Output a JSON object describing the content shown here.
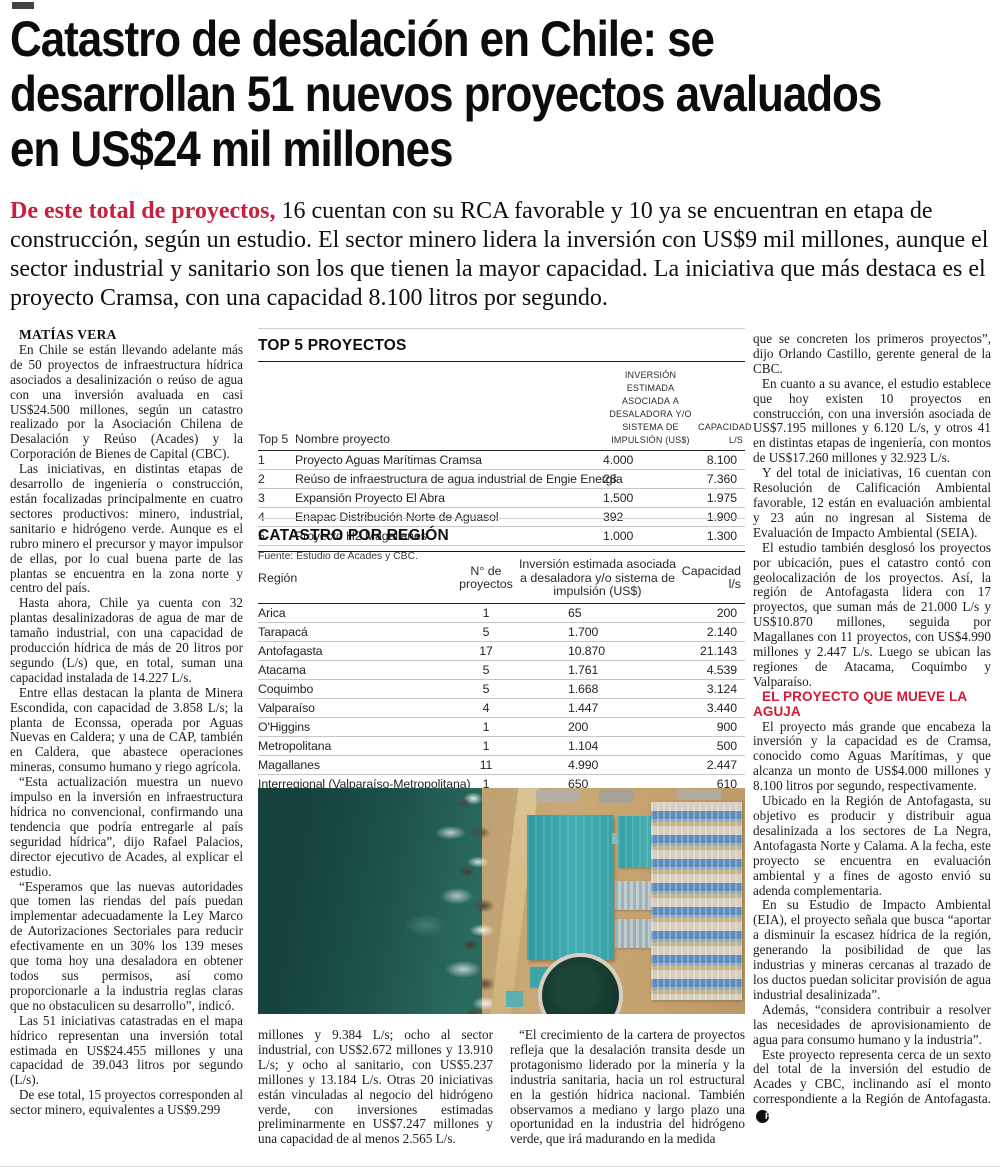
{
  "headline": {
    "lines": [
      "Catastro de desalación en Chile: se",
      "desarrollan 51 nuevos proyectos avaluados",
      "en US$24 mil millones"
    ]
  },
  "lede": {
    "lead_in": "De este total de proyectos,",
    "text": " 16 cuentan con su RCA favorable y 10 ya se encuentran en etapa de construcción, según un estudio. El sector minero lidera la inversión con US$9 mil millones, aunque el sector industrial y sanitario son los que tienen la mayor capacidad. La iniciativa que más destaca es el proyecto Cramsa, con una capacidad 8.100 litros por segundo."
  },
  "byline": "MATÍAS VERA",
  "col1": {
    "paragraphs": [
      "En Chile se están llevando adelante más de 50 proyectos de infraestructura hídrica asociados a desalinización o reúso de agua con una inversión avaluada en casi US$24.500 millones, según un catastro realizado por la Asociación Chilena de Desalación y Reúso (Acades) y la Corporación de Bienes de Capital (CBC).",
      "Las iniciativas, en distintas etapas de desarrollo de ingeniería o construcción, están focalizadas principalmente en cuatro sectores productivos: minero, industrial, sanitario e hidrógeno verde. Aunque es el rubro minero el precursor y mayor impulsor de ellas, por lo cual buena parte de las plantas se encuentra en la zona norte y centro del país.",
      "Hasta ahora, Chile ya cuenta con 32 plantas desalinizadoras de agua de mar de tamaño industrial, con una capacidad de producción hídrica de más de 20 litros por segundo (L/s) que, en total, suman una capacidad instalada de 14.227 L/s.",
      "Entre ellas destacan la planta de Minera Escondida, con capacidad de 3.858 L/s; la planta de Econssa, operada por Aguas Nuevas en Caldera; y una de CAP, también en Caldera, que abastece operaciones mineras, consumo humano y riego agrícola.",
      "“Esta actualización muestra un nuevo impulso en la inversión en infraestructura hídrica no convencional, confirmando una tendencia que podría entregarle al país seguridad hídrica”, dijo Rafael Palacios, director ejecutivo de Acades, al explicar el estudio.",
      "“Esperamos que las nuevas autoridades que tomen las riendas del país puedan implementar adecuadamente la Ley Marco de Autorizaciones Sectoriales para reducir efectivamente en un 30% los 139 meses que toma hoy una desaladora en obtener todos sus permisos, así como proporcionarle a la industria reglas claras que no obstaculicen su desarrollo”, indicó.",
      "Las 51 iniciativas catastradas en el mapa hídrico representan una inversión total estimada en US$24.455 millones y una capacidad de 39.043 litros por segundo (L/s).",
      "De ese total, 15 proyectos corresponden al sector minero, equivalentes a US$9.299"
    ]
  },
  "top5_table": {
    "title": "TOP 5 PROYECTOS",
    "headers": {
      "rank": "Top 5",
      "name": "Nombre proyecto",
      "investment": "Inversión estimada asociada a desaladora y/o sistema de impulsión (US$)",
      "capacity": "Capacidad L/s"
    },
    "rows": [
      {
        "rank": "1",
        "name": "Proyecto Aguas Marítimas Cramsa",
        "investment": "4.000",
        "capacity": "8.100"
      },
      {
        "rank": "2",
        "name": "Reúso de infraestructura de agua industrial de Engie Energía",
        "investment": "28",
        "capacity": "7.360"
      },
      {
        "rank": "3",
        "name": "Expansión Proyecto El Abra",
        "investment": "1.500",
        "capacity": "1.975"
      },
      {
        "rank": "4",
        "name": "Enapac Distribución Norte de Aguasol",
        "investment": "392",
        "capacity": "1.900"
      },
      {
        "rank": "5",
        "name": "Proyecto H2 Magallanes",
        "investment": "1.000",
        "capacity": "1.300"
      }
    ],
    "source": "Fuente: Estudio de Acades y CBC."
  },
  "region_table": {
    "title": "CATASTRO POR REGIÓN",
    "headers": {
      "region": "Región",
      "projects": "N° de proyectos",
      "investment": "Inversión estimada asociada a desaladora y/o sistema de impulsión (US$)",
      "capacity": "Capacidad l/s"
    },
    "rows": [
      {
        "region": "Arica",
        "projects": "1",
        "investment": "65",
        "capacity": "200"
      },
      {
        "region": "Tarapacá",
        "projects": "5",
        "investment": "1.700",
        "capacity": "2.140"
      },
      {
        "region": "Antofagasta",
        "projects": "17",
        "investment": "10.870",
        "capacity": "21.143"
      },
      {
        "region": "Atacama",
        "projects": "5",
        "investment": "1.761",
        "capacity": "4.539"
      },
      {
        "region": "Coquimbo",
        "projects": "5",
        "investment": "1.668",
        "capacity": "3.124"
      },
      {
        "region": "Valparaíso",
        "projects": "4",
        "investment": "1.447",
        "capacity": "3.440"
      },
      {
        "region": "O'Higgins",
        "projects": "1",
        "investment": "200",
        "capacity": "900"
      },
      {
        "region": "Metropolitana",
        "projects": "1",
        "investment": "1.104",
        "capacity": "500"
      },
      {
        "region": "Magallanes",
        "projects": "11",
        "investment": "4.990",
        "capacity": "2.447"
      },
      {
        "region": "Interregional (Valparaíso-Metropolitana)",
        "projects": "1",
        "investment": "650",
        "capacity": "610"
      }
    ],
    "source": "Fuente: Estudio de Acades y CBC."
  },
  "mid_columns": {
    "col_a": "millones y 9.384 L/s; ocho al sector industrial, con US$2.672 millones y 13.910 L/s; y ocho al sanitario, con US$5.237 millones y 13.184 L/s. Otras 20 iniciativas están vinculadas al negocio del hidrógeno verde, con inversiones estimadas preliminarmente en US$7.247 millones y una capacidad de al menos 2.565 L/s.",
    "col_b": "“El crecimiento de la cartera de proyectos refleja que la desalación transita desde un protagonismo liderado por la minería y la industria sanitaria, hacia un rol estructural en la gestión hídrica nacional. También observamos a mediano y largo plazo una oportunidad en la industria del hidrógeno verde, que irá madurando en la medida"
  },
  "right_col": {
    "paragraphs_top": [
      "que se concreten los primeros proyectos”, dijo Orlando Castillo, gerente general de la CBC.",
      "En cuanto a su avance, el estudio establece que hoy existen 10 proyectos en construcción, con una inversión asociada de US$7.195 millones y 6.120 L/s, y otros 41 en distintas etapas de ingeniería, con montos de US$17.260 millones y 32.923 L/s.",
      "Y del total de iniciativas, 16 cuentan con Resolución de Calificación Ambiental favorable, 12 están en evaluación ambiental y 23 aún no ingresan al Sistema de Evaluación de Impacto Ambiental (SEIA).",
      "El estudio también desglosó los proyectos por ubicación, pues el catastro contó con geolocalización de los proyectos. Así, la región de Antofagasta lidera con 17 proyectos, que suman más de 21.000 L/s y US$10.870 millones, seguida por Magallanes con 11 proyectos, con US$4.990 millones y 2.447 L/s. Luego se ubican las regiones de Atacama, Coquimbo y Valparaíso."
    ],
    "subhead": "EL PROYECTO QUE MUEVE LA AGUJA",
    "paragraphs_bottom": [
      "El proyecto más grande que encabeza la inversión y la capacidad es de Cramsa, conocido como Aguas Marítimas, y que alcanza un monto de US$4.000 millones y 8.100 litros por segundo, respectivamente.",
      "Ubicado en la Región de Antofagasta, su objetivo es producir y distribuir agua desalinizada a los sectores de La Negra, Antofagasta Norte y Calama. A la fecha, este proyecto se encuentra en evaluación ambiental y a fines de agosto envió su adenda complementaria.",
      "En su Estudio de Impacto Ambiental (EIA), el proyecto señala que busca “aportar a disminuir la escasez hídrica de la región, generando la posibilidad de que las industrias y mineras cercanas al trazado de los ductos puedan solicitar provisión de agua industrial desalinizada”.",
      "Además, “considera contribuir a resolver las necesidades de aprovisionamiento de agua para consumo humano y la industria”.",
      "Este proyecto representa cerca de un sexto del total de la inversión del estudio de Acades y CBC, inclinando así el monto correspondiente a la Región de Antofagasta."
    ],
    "endmark": "P"
  },
  "colors": {
    "accent_red": "#c7203f",
    "headline_black": "#0c0c0c"
  }
}
